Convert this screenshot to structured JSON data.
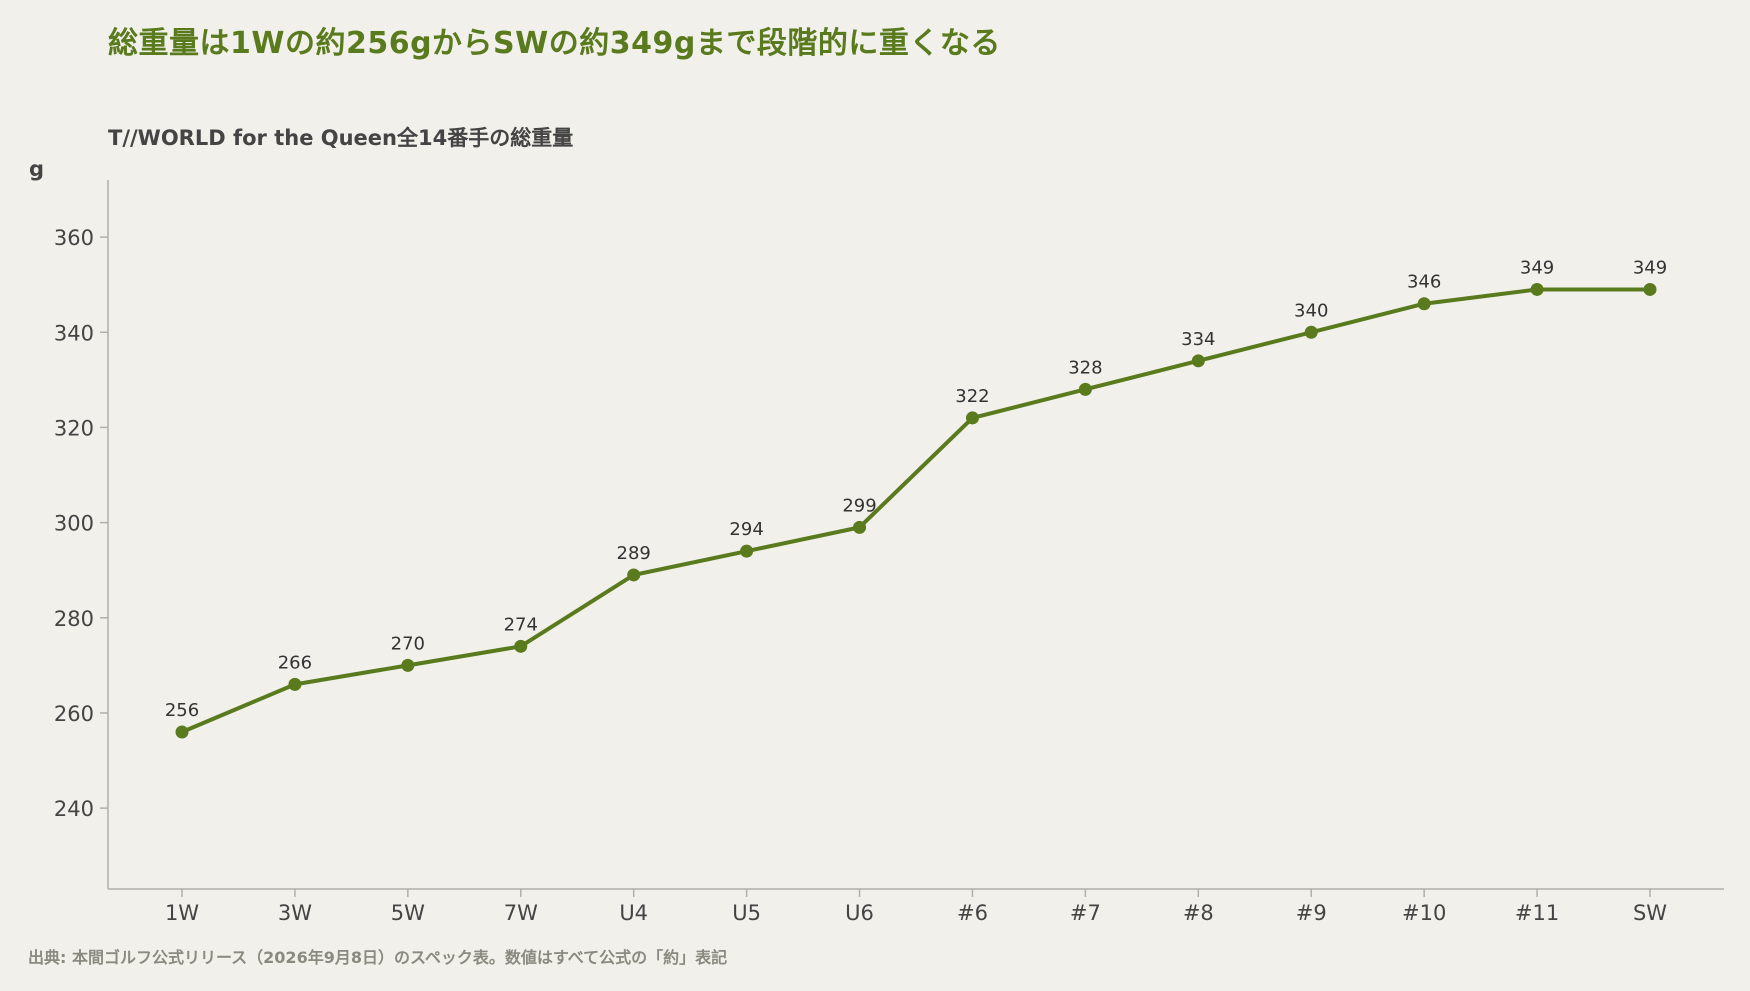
{
  "header": {
    "title": "総重量は1Wの約256gからSWの約349gまで段階的に重くなる",
    "subtitle": "T//WORLD for the Queen全14番手の総重量"
  },
  "footer": {
    "source": "出典: 本間ゴルフ公式リリース（2026年9月8日）のスペック表。数値はすべて公式の「約」表記"
  },
  "colors": {
    "accent": "#5a7a1e",
    "axis": "#b0b0a8",
    "text": "#444444"
  },
  "chart_data": {
    "type": "line",
    "title": "総重量は1Wの約256gからSWの約349gまで段階的に重くなる",
    "subtitle": "T//WORLD for the Queen全14番手の総重量",
    "ylabel": "g",
    "xlabel": "",
    "categories": [
      "1W",
      "3W",
      "5W",
      "7W",
      "U4",
      "U5",
      "U6",
      "#6",
      "#7",
      "#8",
      "#9",
      "#10",
      "#11",
      "SW"
    ],
    "series": [
      {
        "values": [
          256,
          266,
          270,
          274,
          289,
          294,
          299,
          322,
          328,
          334,
          340,
          346,
          349,
          349
        ]
      }
    ],
    "yticks": [
      240,
      260,
      280,
      300,
      320,
      340,
      360
    ],
    "ylim": [
      223,
      372
    ],
    "grid": false,
    "markers": true,
    "data_labels": true
  }
}
